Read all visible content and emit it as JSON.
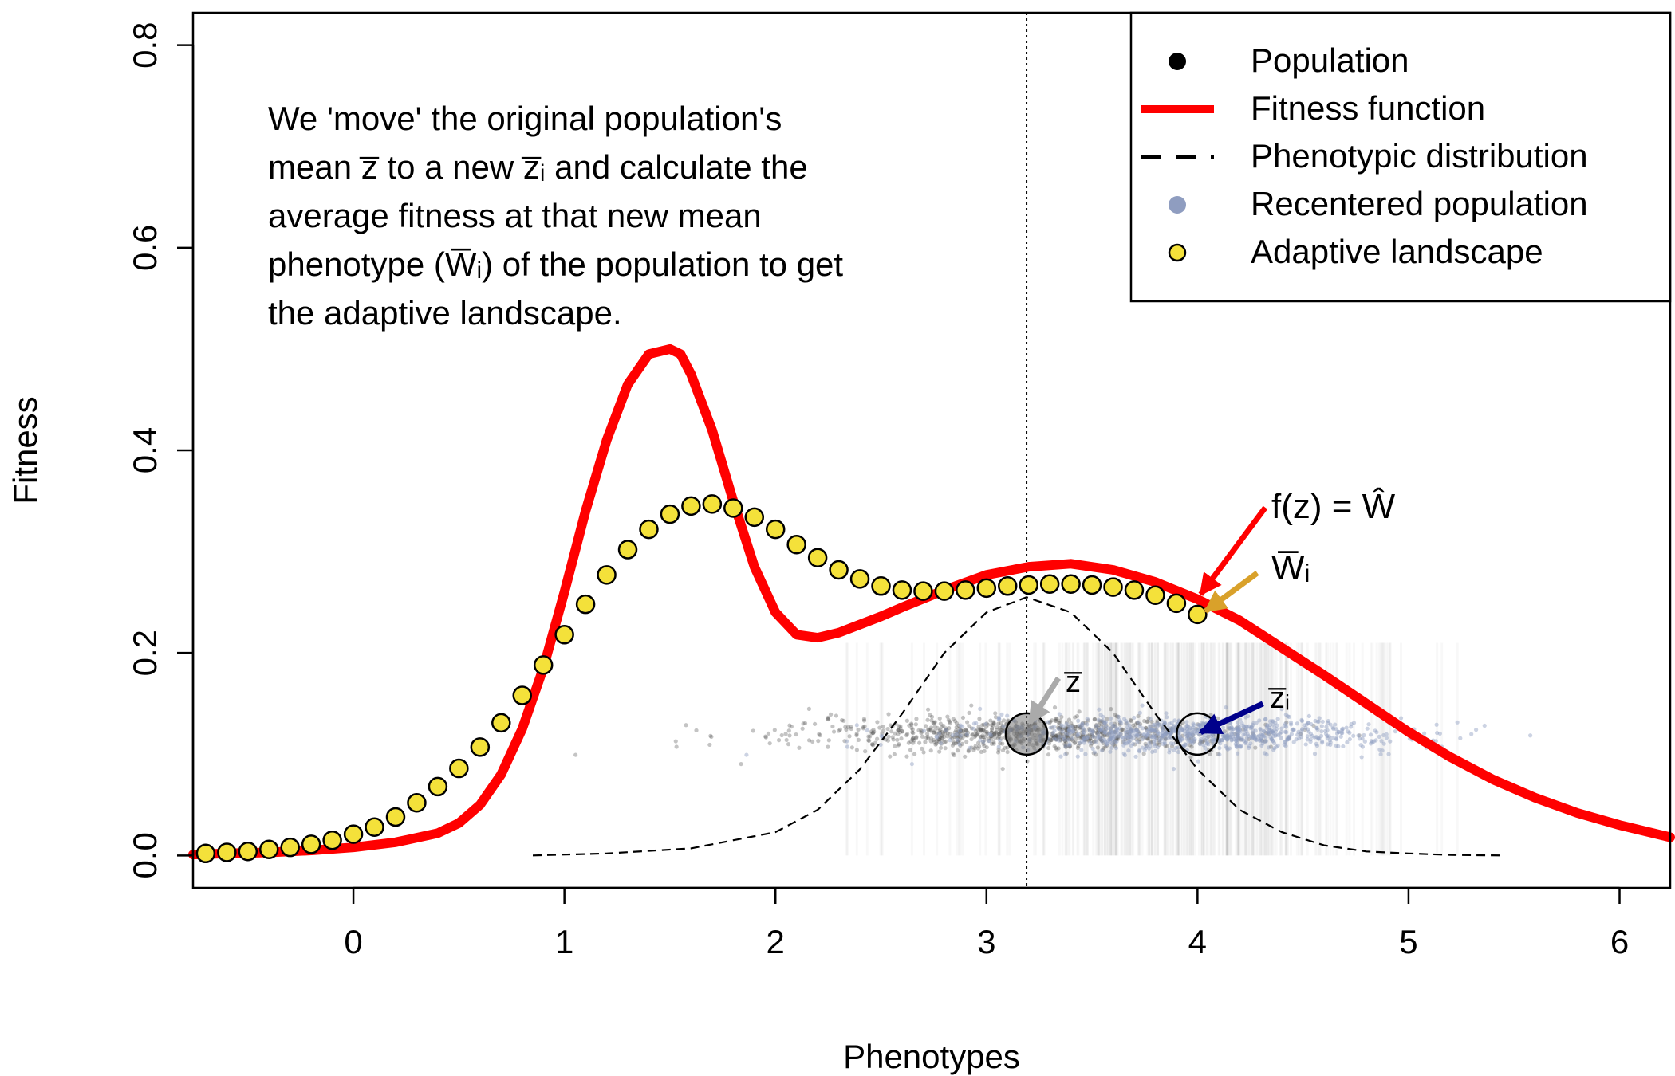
{
  "chart_data": {
    "type": "line",
    "xlabel": "Phenotypes",
    "ylabel": "Fitness",
    "xlim": [
      -0.76,
      6.24
    ],
    "ylim": [
      -0.032,
      0.832
    ],
    "x_ticks": [
      "0",
      "1",
      "2",
      "3",
      "4",
      "5",
      "6"
    ],
    "y_ticks": [
      "0.0",
      "0.2",
      "0.4",
      "0.6",
      "0.8"
    ],
    "grid": false,
    "legend_position": "top-right",
    "legend": [
      {
        "label": "Population",
        "symbol": "dot",
        "color": "#000000"
      },
      {
        "label": "Fitness function",
        "symbol": "line",
        "color": "#ff0000"
      },
      {
        "label": "Phenotypic distribution",
        "symbol": "dashed-line",
        "color": "#000000"
      },
      {
        "label": "Recentered population",
        "symbol": "dot",
        "color": "#8f9dc0"
      },
      {
        "label": "Adaptive landscape",
        "symbol": "circle",
        "color": "#f4e13a"
      }
    ],
    "annotation_text": [
      "We 'move' the original population's",
      "mean z̅ to a new z̅ᵢ and calculate the",
      "average fitness at that new mean",
      "phenotype (W̅ᵢ) of the population to get",
      "the adaptive landscape."
    ],
    "labels": {
      "fitness_eq": "f(z) = Ŵ",
      "w_bar_i": "W̅ᵢ",
      "z_bar": "z̅",
      "z_bar_i": "z̅ᵢ"
    },
    "original_mean": 3.19,
    "new_mean": 4.0,
    "population_y": 0.12,
    "fitness_function": {
      "x": [
        -0.76,
        -0.6,
        -0.4,
        -0.2,
        0,
        0.2,
        0.4,
        0.5,
        0.6,
        0.7,
        0.8,
        0.9,
        1.0,
        1.1,
        1.2,
        1.3,
        1.4,
        1.5,
        1.55,
        1.6,
        1.7,
        1.8,
        1.9,
        2.0,
        2.1,
        2.2,
        2.3,
        2.4,
        2.5,
        2.6,
        2.8,
        3.0,
        3.2,
        3.4,
        3.6,
        3.8,
        4.0,
        4.2,
        4.4,
        4.6,
        4.8,
        5.0,
        5.2,
        5.4,
        5.6,
        5.8,
        6.0,
        6.24
      ],
      "y": [
        0.001,
        0.002,
        0.003,
        0.005,
        0.008,
        0.013,
        0.022,
        0.032,
        0.05,
        0.08,
        0.125,
        0.185,
        0.26,
        0.34,
        0.41,
        0.465,
        0.495,
        0.5,
        0.495,
        0.475,
        0.42,
        0.35,
        0.285,
        0.24,
        0.218,
        0.215,
        0.22,
        0.228,
        0.236,
        0.245,
        0.262,
        0.277,
        0.285,
        0.288,
        0.282,
        0.27,
        0.253,
        0.232,
        0.205,
        0.178,
        0.15,
        0.122,
        0.097,
        0.075,
        0.057,
        0.042,
        0.03,
        0.018
      ]
    },
    "phenotypic_distribution": {
      "x": [
        0.85,
        1.2,
        1.6,
        2.0,
        2.2,
        2.4,
        2.6,
        2.8,
        3.0,
        3.19,
        3.4,
        3.6,
        3.8,
        4.0,
        4.2,
        4.4,
        4.6,
        4.8,
        5.0,
        5.2,
        5.45
      ],
      "y": [
        0.0,
        0.002,
        0.007,
        0.023,
        0.045,
        0.085,
        0.14,
        0.2,
        0.24,
        0.255,
        0.24,
        0.2,
        0.14,
        0.085,
        0.045,
        0.023,
        0.01,
        0.004,
        0.002,
        0.0005,
        0.0
      ]
    },
    "adaptive_landscape": {
      "x": [
        -0.7,
        -0.6,
        -0.5,
        -0.4,
        -0.3,
        -0.2,
        -0.1,
        0.0,
        0.1,
        0.2,
        0.3,
        0.4,
        0.5,
        0.6,
        0.7,
        0.8,
        0.9,
        1.0,
        1.1,
        1.2,
        1.3,
        1.4,
        1.5,
        1.6,
        1.7,
        1.8,
        1.9,
        2.0,
        2.1,
        2.2,
        2.3,
        2.4,
        2.5,
        2.6,
        2.7,
        2.8,
        2.9,
        3.0,
        3.1,
        3.2,
        3.3,
        3.4,
        3.5,
        3.6,
        3.7,
        3.8,
        3.9,
        4.0
      ],
      "y": [
        0.002,
        0.003,
        0.004,
        0.006,
        0.008,
        0.011,
        0.015,
        0.021,
        0.028,
        0.038,
        0.052,
        0.068,
        0.086,
        0.107,
        0.131,
        0.158,
        0.188,
        0.218,
        0.248,
        0.277,
        0.302,
        0.322,
        0.337,
        0.345,
        0.347,
        0.343,
        0.334,
        0.322,
        0.307,
        0.294,
        0.282,
        0.273,
        0.266,
        0.262,
        0.261,
        0.261,
        0.262,
        0.264,
        0.266,
        0.267,
        0.268,
        0.268,
        0.267,
        0.265,
        0.262,
        0.257,
        0.249,
        0.238
      ]
    }
  },
  "colors": {
    "fitness_function": "#ff0000",
    "adaptive_fill": "#f4e13a",
    "recentered_point": "#8f9dc0",
    "population_point": "#555555",
    "arrow_fitness": "#ff0000",
    "arrow_wbar": "#d9a12a",
    "arrow_zbar": "#aaaaaa",
    "arrow_zbar_i": "#00008b"
  }
}
